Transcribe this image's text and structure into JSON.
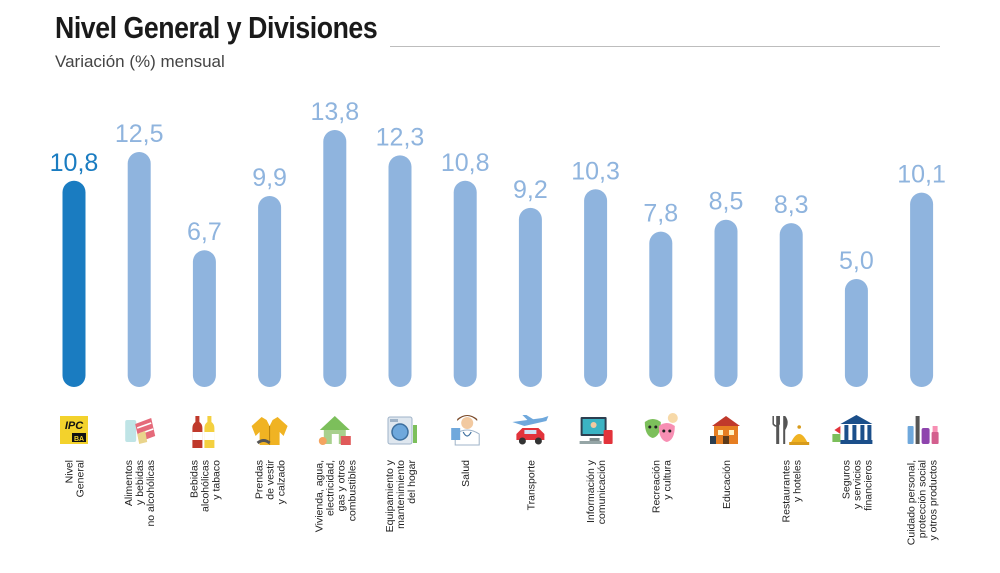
{
  "chart_data": {
    "type": "bar",
    "title": "Nivel General y Divisiones",
    "subtitle": "Variación (%) mensual",
    "categories": [
      [
        "Nivel",
        "General"
      ],
      [
        "Alimentos",
        "y bebidas",
        "no alcohólicas"
      ],
      [
        "Bebidas",
        "alcohólicas",
        "y tabaco"
      ],
      [
        "Prendas",
        "de vestir",
        "y calzado"
      ],
      [
        "Vivienda, agua,",
        "electricidad,",
        "gas y otros",
        "combustibles"
      ],
      [
        "Equipamiento y",
        "mantenimiento",
        "del hogar"
      ],
      [
        "Salud"
      ],
      [
        "Transporte"
      ],
      [
        "Información y",
        "comunicación"
      ],
      [
        "Recreación",
        "y cultura"
      ],
      [
        "Educación"
      ],
      [
        "Restaurantes",
        "y hoteles"
      ],
      [
        "Seguros",
        "y servicios",
        "financieros"
      ],
      [
        "Cuidado personal,",
        "protección social",
        "y otros productos"
      ]
    ],
    "values": [
      10.8,
      12.5,
      6.7,
      9.9,
      13.8,
      12.3,
      10.8,
      9.2,
      10.3,
      7.8,
      8.5,
      8.3,
      5.0,
      10.1
    ],
    "value_labels": [
      "10,8",
      "12,5",
      "6,7",
      "9,9",
      "13,8",
      "12,3",
      "10,8",
      "9,2",
      "10,3",
      "7,8",
      "8,5",
      "8,3",
      "5,0",
      "10,1"
    ],
    "highlight_index": 0,
    "ylim": [
      0,
      14
    ],
    "icons": [
      "ipc-ba-logo-icon",
      "grocery-bag-icon",
      "wine-bottles-icon",
      "jacket-icon",
      "house-icon",
      "washing-machine-icon",
      "doctor-icon",
      "car-plane-icon",
      "computer-icon",
      "theater-masks-icon",
      "school-icon",
      "cutlery-icon",
      "bank-icon",
      "cosmetics-icon"
    ],
    "logo_text": [
      "IPC",
      "BA"
    ],
    "colors": {
      "bar": "#8fb4de",
      "highlight": "#1a7cc1",
      "text": "#1a1a1a"
    }
  }
}
